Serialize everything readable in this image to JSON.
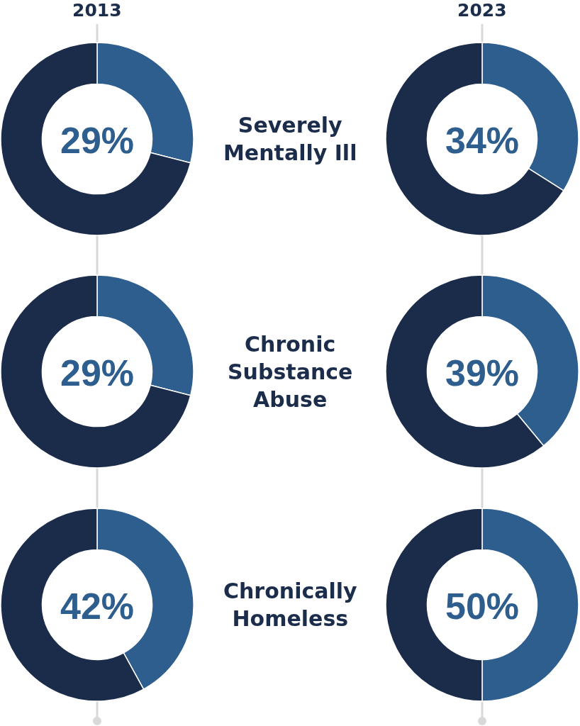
{
  "chart_data": [
    {
      "type": "donut",
      "title": "2013",
      "categories": [
        null,
        null
      ],
      "values": [
        29,
        71
      ],
      "colors": [
        "#2e5e8e",
        "#1a2c4a"
      ],
      "annotations": [
        "29%"
      ]
    },
    {
      "type": "other",
      "annotations": [
        "Severely Mentally Ill"
      ]
    },
    {
      "type": "donut",
      "title": "2023",
      "categories": [
        null,
        null
      ],
      "values": [
        34,
        66
      ],
      "colors": [
        "#2e5e8e",
        "#1a2c4a"
      ],
      "annotations": [
        "34%"
      ]
    },
    {
      "type": "donut",
      "categories": [
        null,
        null
      ],
      "values": [
        29,
        71
      ],
      "colors": [
        "#2e5e8e",
        "#1a2c4a"
      ],
      "annotations": [
        "29%"
      ]
    },
    {
      "type": "other",
      "annotations": [
        "Chronic Substance Abuse"
      ]
    },
    {
      "type": "donut",
      "categories": [
        null,
        null
      ],
      "values": [
        39,
        61
      ],
      "colors": [
        "#2e5e8e",
        "#1a2c4a"
      ],
      "annotations": [
        "39%"
      ]
    },
    {
      "type": "donut",
      "categories": [
        null,
        null
      ],
      "values": [
        42,
        58
      ],
      "colors": [
        "#2e5e8e",
        "#1a2c4a"
      ],
      "annotations": [
        "42%"
      ]
    },
    {
      "type": "other",
      "annotations": [
        "Chronically Homeless"
      ]
    },
    {
      "type": "donut",
      "categories": [
        null,
        null
      ],
      "values": [
        50,
        50
      ],
      "colors": [
        "#2e5e8e",
        "#1a2c4a"
      ],
      "annotations": [
        "50%"
      ]
    }
  ]
}
